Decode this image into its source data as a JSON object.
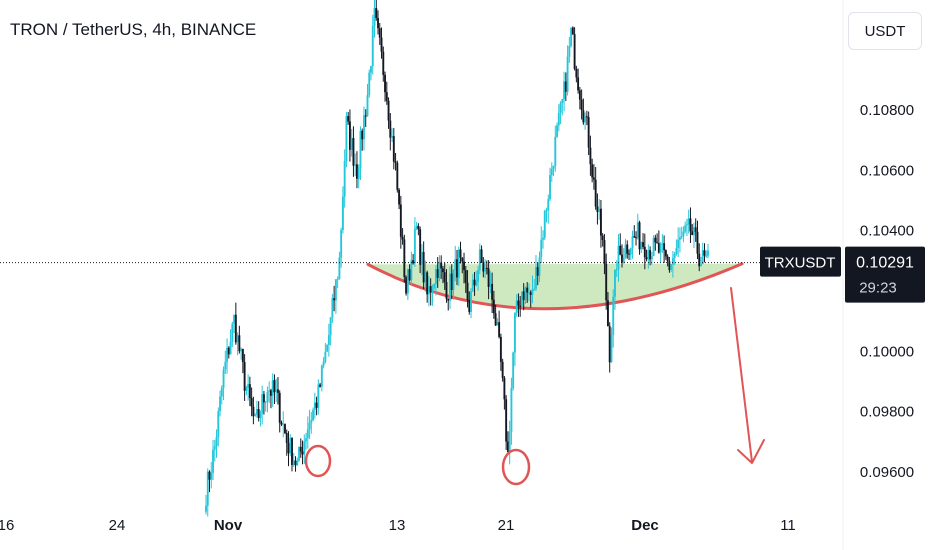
{
  "header": {
    "title": "TRON / TetherUS, 4h, BINANCE",
    "currency": "USDT"
  },
  "price_tag": {
    "symbol": "TRXUSDT",
    "price": "0.10291",
    "countdown": "29:23"
  },
  "colors": {
    "up": "#26c6da",
    "down": "#131722",
    "annotation": "#e05555",
    "cup_fill": "#b9e0a5",
    "label_bg": "#131722"
  },
  "chart_data": {
    "type": "candlestick",
    "symbol": "TRXUSDT",
    "interval": "4h",
    "exchange": "BINANCE",
    "x_tick_labels": [
      "16",
      "24",
      "Nov",
      "13",
      "21",
      "Dec",
      "11"
    ],
    "y_tick_labels": [
      "0.09600",
      "0.09800",
      "0.10000",
      "0.10200",
      "0.10400",
      "0.10600",
      "0.10800"
    ],
    "ylim": [
      0.0951,
      0.112
    ],
    "last_price": 0.10291,
    "anchors": [
      [
        0,
        0.0953
      ],
      [
        5,
        0.0968
      ],
      [
        10,
        0.0992
      ],
      [
        16,
        0.101
      ],
      [
        22,
        0.099
      ],
      [
        28,
        0.0975
      ],
      [
        35,
        0.0988
      ],
      [
        40,
        0.0985
      ],
      [
        46,
        0.097
      ],
      [
        52,
        0.0962
      ],
      [
        58,
        0.0975
      ],
      [
        64,
        0.0985
      ],
      [
        70,
        0.1005
      ],
      [
        76,
        0.103
      ],
      [
        80,
        0.1075
      ],
      [
        86,
        0.106
      ],
      [
        92,
        0.1085
      ],
      [
        96,
        0.111
      ],
      [
        102,
        0.109
      ],
      [
        108,
        0.106
      ],
      [
        114,
        0.102
      ],
      [
        120,
        0.104
      ],
      [
        126,
        0.1018
      ],
      [
        132,
        0.1028
      ],
      [
        138,
        0.102
      ],
      [
        144,
        0.103
      ],
      [
        150,
        0.1015
      ],
      [
        156,
        0.103
      ],
      [
        160,
        0.1025
      ],
      [
        164,
        0.1015
      ],
      [
        168,
        0.0995
      ],
      [
        172,
        0.0965
      ],
      [
        176,
        0.101
      ],
      [
        180,
        0.102
      ],
      [
        186,
        0.1018
      ],
      [
        192,
        0.104
      ],
      [
        198,
        0.1065
      ],
      [
        204,
        0.1085
      ],
      [
        208,
        0.1105
      ],
      [
        212,
        0.109
      ],
      [
        218,
        0.107
      ],
      [
        222,
        0.105
      ],
      [
        226,
        0.1035
      ],
      [
        230,
        0.1
      ],
      [
        234,
        0.103
      ],
      [
        240,
        0.1035
      ],
      [
        246,
        0.1038
      ],
      [
        252,
        0.1034
      ],
      [
        258,
        0.1033
      ],
      [
        264,
        0.1028
      ],
      [
        270,
        0.1036
      ],
      [
        276,
        0.104
      ],
      [
        282,
        0.103
      ],
      [
        286,
        0.1029
      ]
    ],
    "annotations": [
      {
        "type": "rounded_bottom",
        "description": "cup shape"
      },
      {
        "type": "circle",
        "at": "Nov low"
      },
      {
        "type": "circle",
        "at": "21 low"
      },
      {
        "type": "arrow",
        "direction": "down"
      }
    ],
    "grid": false
  }
}
